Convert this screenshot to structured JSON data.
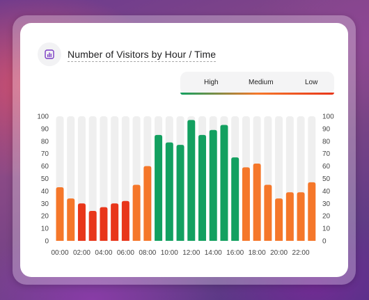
{
  "title": "Number of Visitors by Hour / Time",
  "icon": "bar-chart-icon",
  "colors": {
    "high": "#13a060",
    "medium": "#f5772a",
    "low": "#e8361a",
    "track": "#efefef",
    "accent_icon": "#7a3cc4"
  },
  "legend": {
    "items": [
      "High",
      "Medium",
      "Low"
    ]
  },
  "chart_data": {
    "type": "bar",
    "title": "Number of Visitors by Hour / Time",
    "xlabel": "",
    "ylabel": "",
    "ylim": [
      0,
      100
    ],
    "yticks": [
      0,
      10,
      20,
      30,
      40,
      50,
      60,
      70,
      80,
      90,
      100
    ],
    "y_axis_both_sides": true,
    "grid": false,
    "legend_position": "top-right",
    "categories": [
      "00:00",
      "01:00",
      "02:00",
      "03:00",
      "04:00",
      "05:00",
      "06:00",
      "07:00",
      "08:00",
      "09:00",
      "10:00",
      "11:00",
      "12:00",
      "13:00",
      "14:00",
      "15:00",
      "16:00",
      "17:00",
      "18:00",
      "19:00",
      "20:00",
      "21:00",
      "22:00",
      "23:00"
    ],
    "xtick_labels": [
      "00:00",
      "02:00",
      "04:00",
      "06:00",
      "08:00",
      "10:00",
      "12:00",
      "14:00",
      "16:00",
      "18:00",
      "20:00",
      "22:00"
    ],
    "values": [
      43,
      34,
      30,
      24,
      27,
      30,
      32,
      45,
      60,
      85,
      79,
      77,
      97,
      85,
      89,
      93,
      67,
      59,
      62,
      45,
      34,
      39,
      39,
      47
    ],
    "levels": [
      "medium",
      "medium",
      "low",
      "low",
      "low",
      "low",
      "low",
      "medium",
      "medium",
      "high",
      "high",
      "high",
      "high",
      "high",
      "high",
      "high",
      "high",
      "medium",
      "medium",
      "medium",
      "medium",
      "medium",
      "medium",
      "medium"
    ]
  }
}
